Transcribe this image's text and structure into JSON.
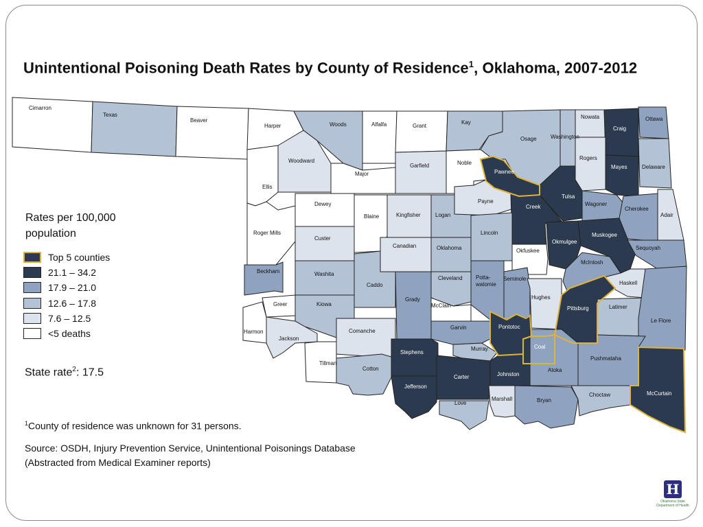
{
  "title": "Unintentional Poisoning Death Rates by County of Residence",
  "title_sup": "1",
  "title_suffix": ", Oklahoma, 2007-2012",
  "legend": {
    "heading_line1": "Rates per 100,000",
    "heading_line2": "population",
    "items": [
      {
        "label": "Top 5 counties",
        "fill": "#2b3a4e",
        "border": "#e0b23a"
      },
      {
        "label": "21.1 – 34.2",
        "fill": "#2b3a4e",
        "border": "#222222"
      },
      {
        "label": "17.9 – 21.0",
        "fill": "#8fa3c0",
        "border": "#222222"
      },
      {
        "label": "12.6 – 17.8",
        "fill": "#b3c2d4",
        "border": "#222222"
      },
      {
        "label": "7.6 – 12.5",
        "fill": "#dde3ec",
        "border": "#222222"
      },
      {
        "label": "<5 deaths",
        "fill": "#ffffff",
        "border": "#222222"
      }
    ]
  },
  "state_rate": {
    "label": "State rate",
    "sup": "2",
    "value": ": 17.5"
  },
  "footnote": {
    "sup": "1",
    "text": "County of residence was unknown for 31 persons."
  },
  "source_line1": "Source: OSDH, Injury Prevention Service, Unintentional Poisonings Database",
  "source_line2": "(Abstracted from Medical Examiner reports)",
  "logo_text_line1": "Oklahoma State",
  "logo_text_line2": "Department of Health",
  "colors": {
    "top5_border": "#e0b23a",
    "dark": "#2b3a4e",
    "mid": "#8fa3c0",
    "light": "#b3c2d4",
    "lighter": "#dde3ec",
    "none": "#ffffff"
  },
  "counties": [
    {
      "name": "Cimarron",
      "category": "none"
    },
    {
      "name": "Texas",
      "category": "light"
    },
    {
      "name": "Beaver",
      "category": "none"
    },
    {
      "name": "Harper",
      "category": "none"
    },
    {
      "name": "Woods",
      "category": "light"
    },
    {
      "name": "Alfalfa",
      "category": "none"
    },
    {
      "name": "Grant",
      "category": "none"
    },
    {
      "name": "Kay",
      "category": "light"
    },
    {
      "name": "Osage",
      "category": "light"
    },
    {
      "name": "Washington",
      "category": "light"
    },
    {
      "name": "Nowata",
      "category": "lighter"
    },
    {
      "name": "Craig",
      "category": "dark"
    },
    {
      "name": "Ottawa",
      "category": "mid"
    },
    {
      "name": "Woodward",
      "category": "lighter"
    },
    {
      "name": "Major",
      "category": "none"
    },
    {
      "name": "Garfield",
      "category": "lighter"
    },
    {
      "name": "Noble",
      "category": "none"
    },
    {
      "name": "Pawnee",
      "category": "top5"
    },
    {
      "name": "Rogers",
      "category": "lighter"
    },
    {
      "name": "Mayes",
      "category": "dark"
    },
    {
      "name": "Delaware",
      "category": "light"
    },
    {
      "name": "Ellis",
      "category": "none"
    },
    {
      "name": "Dewey",
      "category": "none"
    },
    {
      "name": "Blaine",
      "category": "none"
    },
    {
      "name": "Kingfisher",
      "category": "lighter"
    },
    {
      "name": "Logan",
      "category": "light"
    },
    {
      "name": "Payne",
      "category": "lighter"
    },
    {
      "name": "Creek",
      "category": "dark"
    },
    {
      "name": "Tulsa",
      "category": "dark"
    },
    {
      "name": "Wagoner",
      "category": "mid"
    },
    {
      "name": "Cherokee",
      "category": "mid"
    },
    {
      "name": "Adair",
      "category": "lighter"
    },
    {
      "name": "Roger Mills",
      "category": "none"
    },
    {
      "name": "Custer",
      "category": "lighter"
    },
    {
      "name": "Canadian",
      "category": "lighter"
    },
    {
      "name": "Oklahoma",
      "category": "light"
    },
    {
      "name": "Lincoln",
      "category": "light"
    },
    {
      "name": "Okfuskee",
      "category": "none"
    },
    {
      "name": "Okmulgee",
      "category": "dark"
    },
    {
      "name": "Muskogee",
      "category": "dark"
    },
    {
      "name": "Sequoyah",
      "category": "mid"
    },
    {
      "name": "Beckham",
      "category": "mid"
    },
    {
      "name": "Washita",
      "category": "light"
    },
    {
      "name": "Caddo",
      "category": "light"
    },
    {
      "name": "Cleveland",
      "category": "light"
    },
    {
      "name": "Potta-watomie",
      "category": "mid"
    },
    {
      "name": "Seminole",
      "category": "mid"
    },
    {
      "name": "McIntosh",
      "category": "mid"
    },
    {
      "name": "Haskell",
      "category": "lighter"
    },
    {
      "name": "Greer",
      "category": "none"
    },
    {
      "name": "Kiowa",
      "category": "light"
    },
    {
      "name": "Grady",
      "category": "mid"
    },
    {
      "name": "McClain",
      "category": "none"
    },
    {
      "name": "Hughes",
      "category": "lighter"
    },
    {
      "name": "Pittsburg",
      "category": "top5"
    },
    {
      "name": "Latimer",
      "category": "light"
    },
    {
      "name": "Le Flore",
      "category": "mid"
    },
    {
      "name": "Harmon",
      "category": "none"
    },
    {
      "name": "Jackson",
      "category": "lighter"
    },
    {
      "name": "Comanche",
      "category": "lighter"
    },
    {
      "name": "Garvin",
      "category": "mid"
    },
    {
      "name": "Pontotoc",
      "category": "top5"
    },
    {
      "name": "Tillman",
      "category": "none"
    },
    {
      "name": "Stephens",
      "category": "dark"
    },
    {
      "name": "Murray",
      "category": "light"
    },
    {
      "name": "Coal",
      "category": "top5"
    },
    {
      "name": "Pushmataha",
      "category": "mid"
    },
    {
      "name": "Cotton",
      "category": "light"
    },
    {
      "name": "Jefferson",
      "category": "dark"
    },
    {
      "name": "Carter",
      "category": "dark"
    },
    {
      "name": "Johnston",
      "category": "dark"
    },
    {
      "name": "Atoka",
      "category": "mid"
    },
    {
      "name": "Love",
      "category": "light"
    },
    {
      "name": "Marshall",
      "category": "lighter"
    },
    {
      "name": "Bryan",
      "category": "mid"
    },
    {
      "name": "Choctaw",
      "category": "light"
    },
    {
      "name": "McCurtain",
      "category": "top5"
    }
  ]
}
